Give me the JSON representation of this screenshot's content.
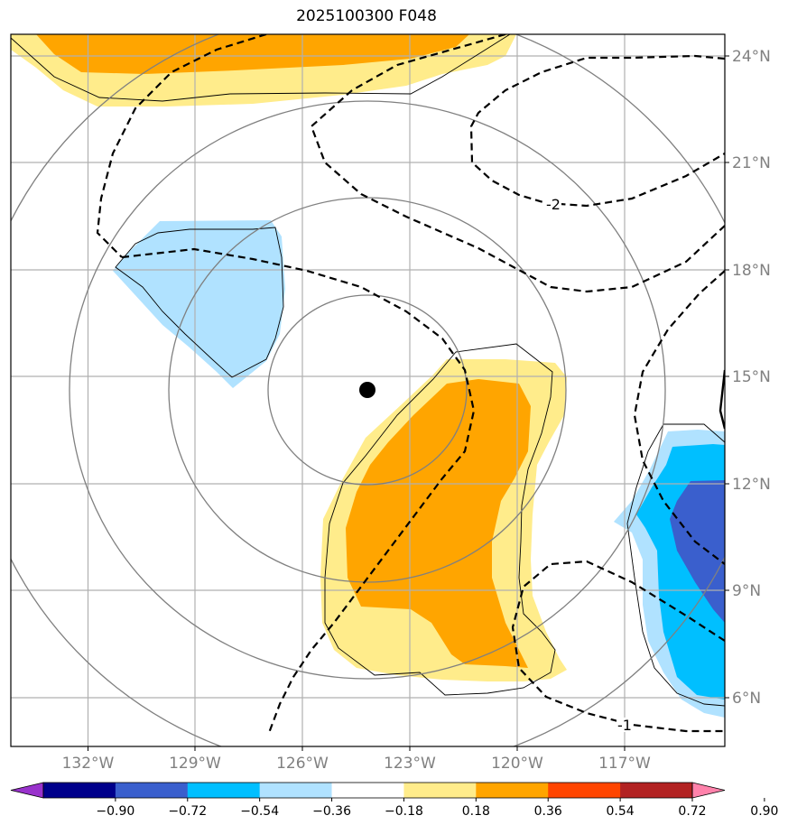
{
  "title": "2025100300 F048",
  "lat_labels": [
    "24°N",
    "21°N",
    "18°N",
    "15°N",
    "12°N",
    "9°N",
    "6°N"
  ],
  "lon_labels": [
    "132°W",
    "129°W",
    "126°W",
    "123°W",
    "120°W",
    "117°W"
  ],
  "contour_labels": [
    "-2",
    "-1"
  ],
  "colorbar": {
    "ticks": [
      "−0.90",
      "−0.72",
      "−0.54",
      "−0.36",
      "−0.18",
      "0.18",
      "0.36",
      "0.54",
      "0.72",
      "0.90"
    ],
    "colors": [
      "#9932cc",
      "#00008b",
      "#3a5fcd",
      "#00bfff",
      "#b0e2ff",
      "#ffffff",
      "#ffec8b",
      "#ffa500",
      "#ff4500",
      "#b22222",
      "#ff82ab"
    ]
  },
  "colors": {
    "light_yellow": "#ffec8b",
    "orange": "#ffa500",
    "light_blue": "#b0e2ff",
    "deep_sky_blue": "#00bfff",
    "royal_blue": "#3a5fcd"
  },
  "map": {
    "lon_range": [
      "134.2°W",
      "114.2°W"
    ],
    "lat_range": [
      "4.8°N",
      "24.6°N"
    ],
    "center_marker": "storm-center"
  }
}
